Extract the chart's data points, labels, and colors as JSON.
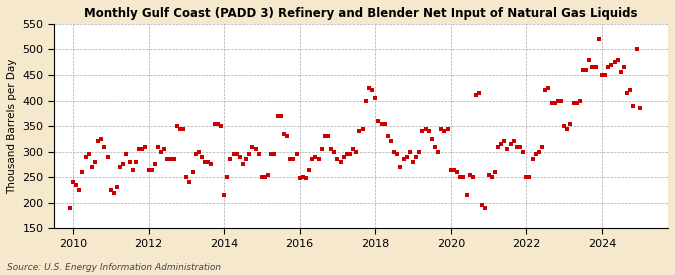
{
  "title": "Monthly Gulf Coast (PADD 3) Refinery and Blender Net Input of Natural Gas Liquids",
  "ylabel": "Thousand Barrels per Day",
  "source": "Source: U.S. Energy Information Administration",
  "background_color": "#f5e8cc",
  "plot_bg_color": "#ffffff",
  "marker_color": "#cc0000",
  "ylim": [
    150,
    550
  ],
  "yticks": [
    150,
    200,
    250,
    300,
    350,
    400,
    450,
    500,
    550
  ],
  "xlim_start": 2009.5,
  "xlim_end": 2025.75,
  "xticks": [
    2010,
    2012,
    2014,
    2016,
    2018,
    2020,
    2022,
    2024
  ],
  "data": [
    [
      2009.917,
      190
    ],
    [
      2010.0,
      240
    ],
    [
      2010.083,
      235
    ],
    [
      2010.167,
      225
    ],
    [
      2010.25,
      260
    ],
    [
      2010.333,
      290
    ],
    [
      2010.417,
      295
    ],
    [
      2010.5,
      270
    ],
    [
      2010.583,
      280
    ],
    [
      2010.667,
      320
    ],
    [
      2010.75,
      325
    ],
    [
      2010.833,
      310
    ],
    [
      2010.917,
      290
    ],
    [
      2011.0,
      225
    ],
    [
      2011.083,
      220
    ],
    [
      2011.167,
      230
    ],
    [
      2011.25,
      270
    ],
    [
      2011.333,
      275
    ],
    [
      2011.417,
      295
    ],
    [
      2011.5,
      280
    ],
    [
      2011.583,
      265
    ],
    [
      2011.667,
      280
    ],
    [
      2011.75,
      305
    ],
    [
      2011.833,
      305
    ],
    [
      2011.917,
      310
    ],
    [
      2012.0,
      265
    ],
    [
      2012.083,
      265
    ],
    [
      2012.167,
      275
    ],
    [
      2012.25,
      310
    ],
    [
      2012.333,
      300
    ],
    [
      2012.417,
      305
    ],
    [
      2012.5,
      285
    ],
    [
      2012.583,
      285
    ],
    [
      2012.667,
      285
    ],
    [
      2012.75,
      350
    ],
    [
      2012.833,
      345
    ],
    [
      2012.917,
      345
    ],
    [
      2013.0,
      250
    ],
    [
      2013.083,
      240
    ],
    [
      2013.167,
      260
    ],
    [
      2013.25,
      295
    ],
    [
      2013.333,
      300
    ],
    [
      2013.417,
      290
    ],
    [
      2013.5,
      280
    ],
    [
      2013.583,
      280
    ],
    [
      2013.667,
      275
    ],
    [
      2013.75,
      355
    ],
    [
      2013.833,
      355
    ],
    [
      2013.917,
      350
    ],
    [
      2014.0,
      215
    ],
    [
      2014.083,
      250
    ],
    [
      2014.167,
      285
    ],
    [
      2014.25,
      295
    ],
    [
      2014.333,
      295
    ],
    [
      2014.417,
      290
    ],
    [
      2014.5,
      275
    ],
    [
      2014.583,
      285
    ],
    [
      2014.667,
      295
    ],
    [
      2014.75,
      310
    ],
    [
      2014.833,
      305
    ],
    [
      2014.917,
      295
    ],
    [
      2015.0,
      250
    ],
    [
      2015.083,
      250
    ],
    [
      2015.167,
      255
    ],
    [
      2015.25,
      295
    ],
    [
      2015.333,
      295
    ],
    [
      2015.417,
      370
    ],
    [
      2015.5,
      370
    ],
    [
      2015.583,
      335
    ],
    [
      2015.667,
      330
    ],
    [
      2015.75,
      285
    ],
    [
      2015.833,
      285
    ],
    [
      2015.917,
      295
    ],
    [
      2016.0,
      248
    ],
    [
      2016.083,
      250
    ],
    [
      2016.167,
      248
    ],
    [
      2016.25,
      265
    ],
    [
      2016.333,
      285
    ],
    [
      2016.417,
      290
    ],
    [
      2016.5,
      285
    ],
    [
      2016.583,
      305
    ],
    [
      2016.667,
      330
    ],
    [
      2016.75,
      330
    ],
    [
      2016.833,
      305
    ],
    [
      2016.917,
      300
    ],
    [
      2017.0,
      285
    ],
    [
      2017.083,
      280
    ],
    [
      2017.167,
      290
    ],
    [
      2017.25,
      295
    ],
    [
      2017.333,
      295
    ],
    [
      2017.417,
      305
    ],
    [
      2017.5,
      300
    ],
    [
      2017.583,
      340
    ],
    [
      2017.667,
      345
    ],
    [
      2017.75,
      400
    ],
    [
      2017.833,
      425
    ],
    [
      2017.917,
      420
    ],
    [
      2018.0,
      405
    ],
    [
      2018.083,
      360
    ],
    [
      2018.167,
      355
    ],
    [
      2018.25,
      355
    ],
    [
      2018.333,
      330
    ],
    [
      2018.417,
      320
    ],
    [
      2018.5,
      300
    ],
    [
      2018.583,
      295
    ],
    [
      2018.667,
      270
    ],
    [
      2018.75,
      285
    ],
    [
      2018.833,
      290
    ],
    [
      2018.917,
      300
    ],
    [
      2019.0,
      280
    ],
    [
      2019.083,
      290
    ],
    [
      2019.167,
      300
    ],
    [
      2019.25,
      340
    ],
    [
      2019.333,
      345
    ],
    [
      2019.417,
      340
    ],
    [
      2019.5,
      325
    ],
    [
      2019.583,
      310
    ],
    [
      2019.667,
      300
    ],
    [
      2019.75,
      345
    ],
    [
      2019.833,
      340
    ],
    [
      2019.917,
      345
    ],
    [
      2020.0,
      265
    ],
    [
      2020.083,
      265
    ],
    [
      2020.167,
      260
    ],
    [
      2020.25,
      250
    ],
    [
      2020.333,
      250
    ],
    [
      2020.417,
      215
    ],
    [
      2020.5,
      255
    ],
    [
      2020.583,
      250
    ],
    [
      2020.667,
      410
    ],
    [
      2020.75,
      415
    ],
    [
      2020.833,
      195
    ],
    [
      2020.917,
      190
    ],
    [
      2021.0,
      255
    ],
    [
      2021.083,
      250
    ],
    [
      2021.167,
      260
    ],
    [
      2021.25,
      310
    ],
    [
      2021.333,
      315
    ],
    [
      2021.417,
      320
    ],
    [
      2021.5,
      305
    ],
    [
      2021.583,
      315
    ],
    [
      2021.667,
      320
    ],
    [
      2021.75,
      310
    ],
    [
      2021.833,
      310
    ],
    [
      2021.917,
      300
    ],
    [
      2022.0,
      250
    ],
    [
      2022.083,
      250
    ],
    [
      2022.167,
      285
    ],
    [
      2022.25,
      295
    ],
    [
      2022.333,
      300
    ],
    [
      2022.417,
      310
    ],
    [
      2022.5,
      420
    ],
    [
      2022.583,
      425
    ],
    [
      2022.667,
      395
    ],
    [
      2022.75,
      395
    ],
    [
      2022.833,
      400
    ],
    [
      2022.917,
      400
    ],
    [
      2023.0,
      350
    ],
    [
      2023.083,
      345
    ],
    [
      2023.167,
      355
    ],
    [
      2023.25,
      395
    ],
    [
      2023.333,
      395
    ],
    [
      2023.417,
      400
    ],
    [
      2023.5,
      460
    ],
    [
      2023.583,
      460
    ],
    [
      2023.667,
      480
    ],
    [
      2023.75,
      465
    ],
    [
      2023.833,
      465
    ],
    [
      2023.917,
      520
    ],
    [
      2024.0,
      450
    ],
    [
      2024.083,
      450
    ],
    [
      2024.167,
      465
    ],
    [
      2024.25,
      470
    ],
    [
      2024.333,
      475
    ],
    [
      2024.417,
      480
    ],
    [
      2024.5,
      455
    ],
    [
      2024.583,
      465
    ],
    [
      2024.667,
      415
    ],
    [
      2024.75,
      420
    ],
    [
      2024.833,
      390
    ],
    [
      2024.917,
      500
    ],
    [
      2025.0,
      385
    ]
  ]
}
